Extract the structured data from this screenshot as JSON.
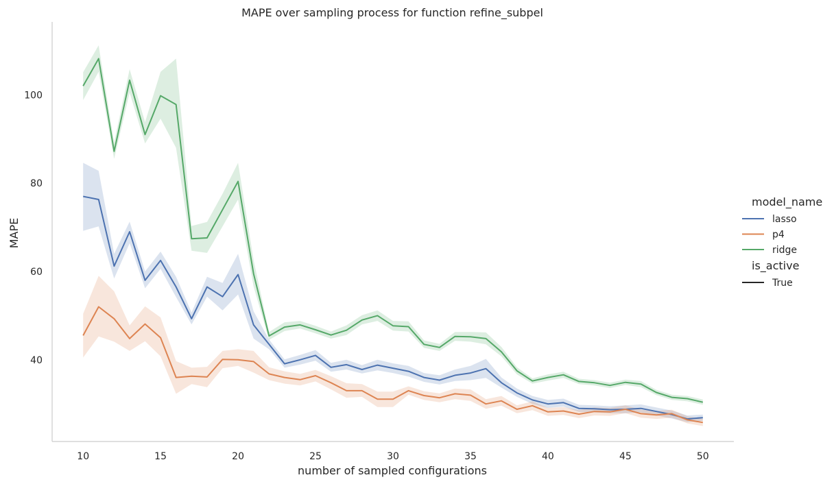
{
  "chart_data": {
    "type": "line",
    "title": "MAPE over sampling process for function refine_subpel",
    "xlabel": "number of sampled configurations",
    "ylabel": "MAPE",
    "xlim": [
      8,
      52
    ],
    "ylim": [
      21.5,
      116.5
    ],
    "xticks": [
      10,
      15,
      20,
      25,
      30,
      35,
      40,
      45,
      50
    ],
    "yticks": [
      40,
      60,
      80,
      100
    ],
    "grid": false,
    "legend": {
      "placement": "right",
      "hue_title": "model_name",
      "style_title": "is_active",
      "style_entry": "True"
    },
    "x": [
      10,
      11,
      12,
      13,
      14,
      15,
      16,
      17,
      18,
      19,
      20,
      21,
      22,
      23,
      24,
      25,
      26,
      27,
      28,
      29,
      30,
      31,
      32,
      33,
      34,
      35,
      36,
      37,
      38,
      39,
      40,
      41,
      42,
      43,
      44,
      45,
      46,
      47,
      48,
      49,
      50
    ],
    "series": [
      {
        "name": "lasso",
        "color": "#4c72b0",
        "values": [
          77,
          76.3,
          61.2,
          69,
          58,
          62.5,
          56.5,
          49.3,
          56.5,
          54.3,
          59.3,
          47.9,
          43.5,
          39.1,
          40,
          41,
          38.3,
          38.9,
          37.8,
          38.8,
          38.1,
          37.4,
          36,
          35.4,
          36.5,
          37,
          38,
          34.8,
          32.5,
          30.9,
          30,
          30.3,
          29,
          28.9,
          28.7,
          28.8,
          29,
          28.3,
          27.6,
          26.6,
          26.9
        ],
        "lower": [
          69.2,
          70.2,
          58.4,
          66.4,
          56.2,
          60.6,
          54.2,
          48,
          54.3,
          51.2,
          54.8,
          44.8,
          42.4,
          38.2,
          38.9,
          39.8,
          37.3,
          37.8,
          36.9,
          37.6,
          37,
          36.2,
          35,
          34.4,
          35.2,
          35.4,
          35.9,
          33.7,
          31.6,
          30,
          29.1,
          29.4,
          28.2,
          28.1,
          27.9,
          27.9,
          28.1,
          27.4,
          26.7,
          25.9,
          26.2
        ],
        "upper": [
          84.6,
          82.8,
          64,
          71.3,
          60,
          64.5,
          58.8,
          50.7,
          58.8,
          57.4,
          64,
          51,
          44.6,
          40.1,
          41.1,
          42.2,
          39.3,
          40,
          38.8,
          40,
          39.2,
          38.6,
          37,
          36.5,
          37.8,
          38.6,
          40.2,
          36,
          33.5,
          31.8,
          30.9,
          31.2,
          29.8,
          29.7,
          29.5,
          29.7,
          29.9,
          29.2,
          28.5,
          27.4,
          27.6
        ]
      },
      {
        "name": "p4",
        "color": "#dd8452",
        "values": [
          45.5,
          52,
          49.3,
          44.8,
          48.1,
          45,
          36,
          36.3,
          36.1,
          40.1,
          40,
          39.6,
          36.8,
          36,
          35.5,
          36.4,
          34.8,
          33,
          33,
          31.1,
          31.1,
          33,
          31.9,
          31.4,
          32.3,
          32,
          30,
          30.7,
          28.8,
          29.6,
          28.2,
          28.4,
          27.7,
          28.3,
          28.2,
          28.8,
          27.8,
          27.5,
          27.8,
          26.4,
          25.8
        ],
        "lower": [
          40.5,
          45.3,
          44.1,
          42,
          44.2,
          40.8,
          32.3,
          34.5,
          33.8,
          38.1,
          38.6,
          37.1,
          35.4,
          34.6,
          34.2,
          35.1,
          33.3,
          31.4,
          31.6,
          29.3,
          29.3,
          32.1,
          30.9,
          30.4,
          31.1,
          30.7,
          28.9,
          29.6,
          27.9,
          28.6,
          27.3,
          27.5,
          26.8,
          27.4,
          27.3,
          27.9,
          26.9,
          26.6,
          26.9,
          25.6,
          25
        ],
        "upper": [
          50.4,
          59,
          55.5,
          47.8,
          52.1,
          49.6,
          39.7,
          38.2,
          38.4,
          42,
          42.4,
          42,
          38.3,
          37.4,
          36.8,
          37.7,
          36.3,
          34.7,
          34.5,
          32.8,
          32.8,
          34,
          32.9,
          32.4,
          33.5,
          33.3,
          31.1,
          31.8,
          29.7,
          30.6,
          29.1,
          29.3,
          28.6,
          29.2,
          29.1,
          29.7,
          28.7,
          28.4,
          28.7,
          27.2,
          26.6
        ]
      },
      {
        "name": "ridge",
        "color": "#55a868",
        "values": [
          102,
          108.2,
          87.2,
          103.3,
          91,
          99.8,
          97.8,
          67.4,
          67.6,
          74,
          80.4,
          59.5,
          45.4,
          47.4,
          47.9,
          46.8,
          45.6,
          46.7,
          49,
          50,
          47.7,
          47.5,
          43.5,
          42.8,
          45.3,
          45.2,
          44.8,
          41.8,
          37.5,
          35.2,
          36,
          36.6,
          35.1,
          34.8,
          34.2,
          34.9,
          34.5,
          32.6,
          31.5,
          31.2,
          30.4
        ],
        "lower": [
          98.8,
          105.2,
          85.5,
          100.5,
          89,
          94.6,
          88,
          64.7,
          64.2,
          70.2,
          76.3,
          56.6,
          44.5,
          46.5,
          47.1,
          46,
          44.8,
          45.6,
          48,
          48.8,
          46.6,
          46.4,
          42.7,
          42,
          44.3,
          44.1,
          43.5,
          40.8,
          36.7,
          34.6,
          35.3,
          35.9,
          34.5,
          34.2,
          33.6,
          34.3,
          33.8,
          32,
          30.9,
          30.6,
          29.8
        ],
        "upper": [
          105.1,
          111.2,
          89.2,
          105.8,
          93.8,
          105.2,
          108.2,
          70.3,
          71.2,
          77.6,
          84.6,
          62.6,
          46.3,
          48.5,
          48.8,
          47.7,
          46.4,
          47.8,
          50.1,
          51.2,
          48.8,
          48.7,
          44.4,
          43.6,
          46.3,
          46.3,
          46.2,
          42.9,
          38.3,
          35.8,
          36.7,
          37.3,
          35.7,
          35.4,
          34.8,
          35.5,
          35.2,
          33.2,
          32.1,
          31.8,
          31
        ]
      }
    ]
  }
}
